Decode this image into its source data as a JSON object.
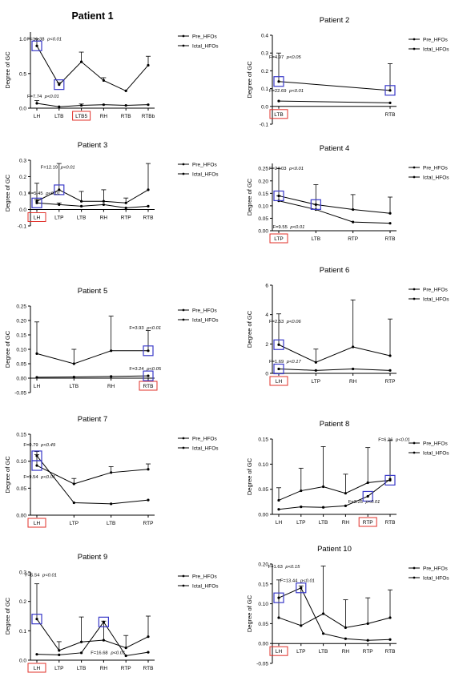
{
  "colors": {
    "line": "#000000",
    "highlight_box": "#3a3ac8",
    "highlight_label": "#e0302a"
  },
  "legend_labels": [
    "Pre_HFOs",
    "Ictal_HFOs"
  ],
  "ylabel": "Degree of GC",
  "chart_data": [
    {
      "type": "line",
      "title": "Patient 1",
      "ylabel": "Degree of GC",
      "categories": [
        "LH",
        "LTB",
        "LTB5",
        "RH",
        "RTB",
        "RTBb"
      ],
      "yticks": [
        "0.0",
        "0.5",
        "1.0"
      ],
      "ylim": [
        0,
        1.1
      ],
      "series": [
        {
          "name": "Pre_HFOs",
          "values": [
            0.9,
            0.34,
            0.67,
            0.4,
            0.25,
            0.62
          ],
          "errors": [
            0.1,
            0.03,
            0.14,
            0.04,
            0,
            0.13
          ]
        },
        {
          "name": "Ictal_HFOs",
          "values": [
            0.07,
            0.02,
            0.04,
            0.05,
            0.04,
            0.05
          ],
          "errors": [
            0.04,
            0,
            0.02,
            0,
            0,
            0
          ]
        }
      ],
      "boxes": [
        [
          0,
          0
        ],
        [
          1,
          0
        ]
      ],
      "red_labels": [
        2
      ],
      "annotations": [
        {
          "f": "F=16.38",
          "p": "p<0.01",
          "at": [
            0,
            0.98
          ]
        },
        {
          "f": "F=7.74",
          "p": "p<0.01",
          "at": [
            0,
            0.15
          ]
        }
      ]
    },
    {
      "type": "line",
      "title": "Patient 2",
      "ylabel": "Degree of GC",
      "categories": [
        "LTB",
        "RTB"
      ],
      "yticks": [
        "-0.1",
        "0.0",
        "0.1",
        "0.2",
        "0.3",
        "0.4"
      ],
      "ylim": [
        -0.1,
        0.4
      ],
      "series": [
        {
          "name": "Pre_HFOs",
          "values": [
            0.14,
            0.09
          ],
          "errors": [
            0.16,
            0.15
          ]
        },
        {
          "name": "Ictal_HFOs",
          "values": [
            0.03,
            0.02
          ],
          "errors": [
            0,
            0
          ]
        }
      ],
      "boxes": [
        [
          0,
          0
        ],
        [
          1,
          0
        ]
      ],
      "red_labels": [
        0
      ],
      "annotations": [
        {
          "f": "F=4.97",
          "p": "p<0.05",
          "at": [
            0,
            0.27
          ]
        },
        {
          "f": "F=22.69",
          "p": "p<0.01",
          "at": [
            0,
            0.08
          ]
        }
      ]
    },
    {
      "type": "line",
      "title": "Patient 3",
      "ylabel": "Degree of GC",
      "categories": [
        "LH",
        "LTP",
        "LTB",
        "RH",
        "RTP",
        "RTB"
      ],
      "yticks": [
        "-0.1",
        "0.0",
        "0.1",
        "0.2",
        "0.3"
      ],
      "ylim": [
        -0.1,
        0.3
      ],
      "series": [
        {
          "name": "Pre_HFOs",
          "values": [
            0.05,
            0.12,
            0.05,
            0.05,
            0.04,
            0.12
          ],
          "errors": [
            0.11,
            0.16,
            0.06,
            0.07,
            0.03,
            0.16
          ]
        },
        {
          "name": "Ictal_HFOs",
          "values": [
            0.04,
            0.03,
            0.02,
            0.03,
            0.01,
            0.02
          ],
          "errors": [
            0.02,
            0.01,
            0,
            0,
            0,
            0
          ]
        }
      ],
      "boxes": [
        [
          0,
          1
        ],
        [
          1,
          0
        ]
      ],
      "red_labels": [
        0
      ],
      "annotations": [
        {
          "f": "F=12.19",
          "p": "p<0.01",
          "at": [
            0.6,
            0.25
          ]
        },
        {
          "f": "F=5.45",
          "p": "p<0.01",
          "at": [
            0.05,
            0.09
          ]
        }
      ]
    },
    {
      "type": "line",
      "title": "Patient 4",
      "ylabel": "Degree of GC",
      "categories": [
        "LTP",
        "LTB",
        "RTP",
        "RTB"
      ],
      "yticks": [
        "0.00",
        "0.05",
        "0.10",
        "0.15",
        "0.20",
        "0.25"
      ],
      "ylim": [
        0,
        0.27
      ],
      "series": [
        {
          "name": "Pre_HFOs",
          "values": [
            0.14,
            0.105,
            0.085,
            0.07
          ],
          "errors": [
            0.11,
            0.08,
            0.06,
            0.065
          ]
        },
        {
          "name": "Ictal_HFOs",
          "values": [
            0.12,
            0.085,
            0.035,
            0.03
          ],
          "errors": [
            0.02,
            0.02,
            0,
            0
          ]
        }
      ],
      "boxes": [
        [
          0,
          0
        ],
        [
          1,
          0
        ]
      ],
      "red_labels": [
        0
      ],
      "annotations": [
        {
          "f": "F=24.03",
          "p": "p<0.01",
          "at": [
            0,
            0.245
          ]
        },
        {
          "f": "F=9.55",
          "p": "p<0.01",
          "at": [
            0.1,
            0.01
          ]
        }
      ]
    },
    {
      "type": "line",
      "title": "Patient 5",
      "ylabel": "Degree of GC",
      "categories": [
        "LH",
        "LTB",
        "RH",
        "RTB"
      ],
      "yticks": [
        "-0.05",
        "0.00",
        "0.05",
        "0.10",
        "0.15",
        "0.20",
        "0.25"
      ],
      "ylim": [
        -0.05,
        0.25
      ],
      "series": [
        {
          "name": "Pre_HFOs",
          "values": [
            0.085,
            0.05,
            0.095,
            0.095
          ],
          "errors": [
            0.11,
            0.05,
            0.12,
            0.07
          ]
        },
        {
          "name": "Ictal_HFOs",
          "values": [
            0.003,
            0.004,
            0.006,
            0.008
          ],
          "errors": [
            0,
            0,
            0,
            0
          ]
        }
      ],
      "boxes": [
        [
          3,
          0
        ],
        [
          3,
          1
        ]
      ],
      "red_labels": [
        3
      ],
      "annotations": [
        {
          "f": "F=3.93",
          "p": "p<0.01",
          "at": [
            2.75,
            0.17
          ]
        },
        {
          "f": "F=3.24",
          "p": "p<0.05",
          "at": [
            2.75,
            0.028
          ]
        }
      ]
    },
    {
      "type": "line",
      "title": "Patient 6",
      "ylabel": "Degree of GC",
      "categories": [
        "LH",
        "LTP",
        "RH",
        "RTP"
      ],
      "yticks": [
        "0",
        "2",
        "4",
        "6"
      ],
      "ylim": [
        0,
        6
      ],
      "series": [
        {
          "name": "Pre_HFOs",
          "values": [
            1.95,
            0.75,
            1.8,
            1.2
          ],
          "errors": [
            2.1,
            0.9,
            3.2,
            2.5
          ]
        },
        {
          "name": "Ictal_HFOs",
          "values": [
            0.3,
            0.2,
            0.3,
            0.2
          ],
          "errors": [
            0,
            0,
            0,
            0
          ]
        }
      ],
      "boxes": [
        [
          0,
          0
        ],
        [
          0,
          1
        ]
      ],
      "red_labels": [
        0
      ],
      "annotations": [
        {
          "f": "F=2.53",
          "p": "p<0.06",
          "at": [
            0,
            3.45
          ]
        },
        {
          "f": "F=1.69",
          "p": "p<0.17",
          "at": [
            0,
            0.72
          ]
        }
      ]
    },
    {
      "type": "line",
      "title": "Patient 7",
      "ylabel": "Degree of GC",
      "categories": [
        "LH",
        "LTP",
        "LTB",
        "RTP"
      ],
      "yticks": [
        "0.00",
        "0.05",
        "0.10",
        "0.15"
      ],
      "ylim": [
        0,
        0.15
      ],
      "series": [
        {
          "name": "Pre_HFOs",
          "values": [
            0.092,
            0.058,
            0.079,
            0.085
          ],
          "errors": [
            0.02,
            0.01,
            0.011,
            0.01
          ]
        },
        {
          "name": "Ictal_HFOs",
          "values": [
            0.11,
            0.023,
            0.021,
            0.028
          ],
          "errors": [
            0.008,
            0,
            0,
            0
          ]
        }
      ],
      "boxes": [
        [
          0,
          0
        ],
        [
          0,
          1
        ]
      ],
      "red_labels": [
        0
      ],
      "annotations": [
        {
          "f": "F=0.79",
          "p": "p<0.49",
          "at": [
            -0.1,
            0.128
          ]
        },
        {
          "f": "F=9.54",
          "p": "p<0.01",
          "at": [
            -0.1,
            0.068
          ]
        }
      ]
    },
    {
      "type": "line",
      "title": "Patient 8",
      "ylabel": "Degree of GC",
      "categories": [
        "LH",
        "LTP",
        "LTB",
        "RH",
        "RTP",
        "RTB"
      ],
      "yticks": [
        "0.00",
        "0.05",
        "0.10",
        "0.15"
      ],
      "ylim": [
        0,
        0.15
      ],
      "series": [
        {
          "name": "Pre_HFOs",
          "values": [
            0.028,
            0.047,
            0.055,
            0.042,
            0.063,
            0.068
          ],
          "errors": [
            0.025,
            0.045,
            0.08,
            0.038,
            0.07,
            0.08
          ]
        },
        {
          "name": "Ictal_HFOs",
          "values": [
            0.01,
            0.015,
            0.014,
            0.017,
            0.036,
            0.07
          ],
          "errors": [
            0,
            0,
            0,
            0,
            0,
            0
          ]
        }
      ],
      "boxes": [
        [
          5,
          0
        ],
        [
          4,
          1
        ]
      ],
      "red_labels": [
        4
      ],
      "annotations": [
        {
          "f": "F=6.26",
          "p": "p<0.01",
          "at": [
            4.9,
            0.146
          ]
        },
        {
          "f": "F=3.25",
          "p": "p<0.01",
          "at": [
            3.55,
            0.022
          ]
        }
      ]
    },
    {
      "type": "line",
      "title": "Patient 9",
      "ylabel": "Degree of GC",
      "categories": [
        "LH",
        "LTP",
        "LTB",
        "RH",
        "RTP",
        "RTB"
      ],
      "yticks": [
        "0.0",
        "0.1",
        "0.2",
        "0.3"
      ],
      "ylim": [
        0,
        0.3
      ],
      "series": [
        {
          "name": "Pre_HFOs",
          "values": [
            0.14,
            0.033,
            0.062,
            0.068,
            0.042,
            0.08
          ],
          "errors": [
            0.12,
            0.03,
            0.085,
            0.065,
            0.042,
            0.07
          ]
        },
        {
          "name": "Ictal_HFOs",
          "values": [
            0.02,
            0.018,
            0.025,
            0.13,
            0.015,
            0.027
          ],
          "errors": [
            0,
            0,
            0,
            0,
            0,
            0
          ]
        }
      ],
      "boxes": [
        [
          0,
          0
        ],
        [
          3,
          1
        ]
      ],
      "red_labels": [
        0
      ],
      "annotations": [
        {
          "f": "F=5.54",
          "p": "p<0.01",
          "at": [
            -0.1,
            0.285
          ]
        },
        {
          "f": "F=16.68",
          "p": "p<0.01",
          "at": [
            2.85,
            0.02
          ]
        }
      ]
    },
    {
      "type": "line",
      "title": "Patient 10",
      "ylabel": "Degree of GC",
      "categories": [
        "LH",
        "LTP",
        "LTB",
        "RH",
        "RTP",
        "RTB"
      ],
      "yticks": [
        "-0.05",
        "0.00",
        "0.05",
        "0.10",
        "0.15",
        "0.20"
      ],
      "ylim": [
        -0.05,
        0.2
      ],
      "series": [
        {
          "name": "Pre_HFOs",
          "values": [
            0.065,
            0.045,
            0.075,
            0.04,
            0.05,
            0.065
          ],
          "errors": [
            0.095,
            0.1,
            0.12,
            0.07,
            0.065,
            0.07
          ]
        },
        {
          "name": "Ictal_HFOs",
          "values": [
            0.115,
            0.14,
            0.025,
            0.012,
            0.008,
            0.01
          ],
          "errors": [
            0,
            0,
            0,
            0,
            0,
            0
          ]
        }
      ],
      "boxes": [
        [
          0,
          1
        ],
        [
          1,
          1
        ]
      ],
      "red_labels": [
        0
      ],
      "annotations": [
        {
          "f": "F=1.63",
          "p": "p<0.15",
          "at": [
            -0.05,
            0.19
          ]
        },
        {
          "f": "F=13.44",
          "p": "p<0.01",
          "at": [
            0.5,
            0.155
          ]
        }
      ]
    }
  ]
}
